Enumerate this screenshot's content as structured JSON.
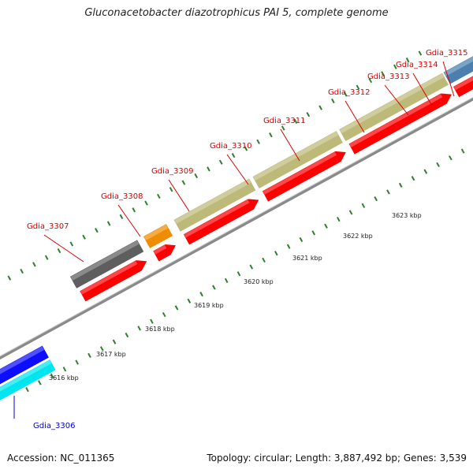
{
  "title": "Gluconacetobacter diazotrophicus PAI 5, complete genome",
  "footer": {
    "accession": "Accession: NC_011365",
    "summary": "Topology: circular; Length: 3,887,492 bp; Genes: 3,539"
  },
  "colors": {
    "label_forward": "#dd0000",
    "label_reverse": "#0000cc",
    "tick": "#2f7f2f",
    "backbone": "#8a8a8a",
    "cds": "#ff0000"
  },
  "scale": {
    "ticks": [
      {
        "label": "3616 kbp"
      },
      {
        "label": "3617 kbp"
      },
      {
        "label": "3618 kbp"
      },
      {
        "label": "3619 kbp"
      },
      {
        "label": "3620 kbp"
      },
      {
        "label": "3621 kbp"
      },
      {
        "label": "3622 kbp"
      },
      {
        "label": "3623 kbp"
      }
    ]
  },
  "genes": [
    {
      "name": "Gdia_3306",
      "strand": "reverse",
      "gene_color": "#0d0dff",
      "cds_color": "#00e6f0"
    },
    {
      "name": "Gdia_3307",
      "strand": "forward",
      "gene_color": "#5e5e5e",
      "cds_color": "#ff0000"
    },
    {
      "name": "Gdia_3308",
      "strand": "forward",
      "gene_color": "#f08c00",
      "cds_color": "#ff0000"
    },
    {
      "name": "Gdia_3309",
      "strand": "forward",
      "gene_color": "#bdb978",
      "cds_color": "#ff0000"
    },
    {
      "name": "Gdia_3310",
      "strand": "forward",
      "gene_color": "#bdb978",
      "cds_color": "#ff0000"
    },
    {
      "name": "Gdia_3311",
      "strand": "forward",
      "gene_color": "#bdb978",
      "cds_color": "#ff0000"
    },
    {
      "name": "Gdia_3312",
      "strand": "forward",
      "gene_color": "#4a7fb0",
      "cds_color": "#ff0000"
    },
    {
      "name": "Gdia_3313",
      "strand": "forward",
      "gene_color": "#14e0f0",
      "cds_color": "#ff0000"
    },
    {
      "name": "Gdia_3314",
      "strand": "forward",
      "gene_color": "#c4c4c4",
      "cds_color": "#ff0000"
    },
    {
      "name": "Gdia_3315",
      "strand": "forward",
      "gene_color": "#6a6a6a",
      "cds_color": "#ff0000"
    }
  ]
}
